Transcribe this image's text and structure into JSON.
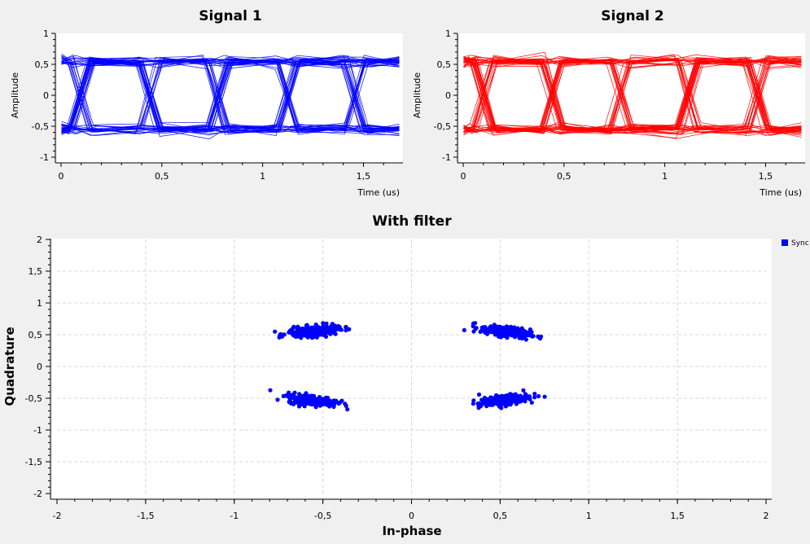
{
  "colors": {
    "signal1": "#0000ff",
    "signal2": "#ff0000",
    "scatter": "#0000ff"
  },
  "chart_data": [
    {
      "type": "line",
      "title": "Signal 1",
      "xlabel": "Time (us)",
      "ylabel": "Amplitude",
      "xlim": [
        0,
        1.68
      ],
      "ylim": [
        -1,
        1
      ],
      "xticks": [
        "0",
        "0,5",
        "1",
        "1,5"
      ],
      "yticks": [
        "1",
        "0,5",
        "0",
        "-0,5",
        "-1"
      ],
      "grid": false,
      "eye": {
        "symbol_period_us": 0.34,
        "first_crossing_us": 0.1,
        "levels": [
          0.55,
          -0.55
        ],
        "spread": 0.09,
        "traces": 60
      }
    },
    {
      "type": "line",
      "title": "Signal 2",
      "xlabel": "Time (us)",
      "ylabel": "Amplitude",
      "xlim": [
        0,
        1.68
      ],
      "ylim": [
        -1,
        1
      ],
      "xticks": [
        "0",
        "0,5",
        "1",
        "1,5"
      ],
      "yticks": [
        "1",
        "0,5",
        "0",
        "-0,5",
        "-1"
      ],
      "grid": false,
      "eye": {
        "symbol_period_us": 0.34,
        "first_crossing_us": 0.1,
        "levels": [
          0.55,
          -0.55
        ],
        "spread": 0.09,
        "traces": 60
      }
    },
    {
      "type": "scatter",
      "title": "With filter",
      "xlabel": "In-phase",
      "ylabel": "Quadrature",
      "xlim": [
        -2,
        2
      ],
      "ylim": [
        -2,
        2
      ],
      "xticks": [
        "-2",
        "-1,5",
        "-1",
        "-0,5",
        "0",
        "0,5",
        "1",
        "1,5",
        "2"
      ],
      "yticks": [
        "2",
        "1,5",
        "1",
        "0,5",
        "0",
        "-0,5",
        "-1",
        "-1,5",
        "-2"
      ],
      "grid": true,
      "legend": {
        "label": "Sync",
        "placement": "top-right"
      },
      "clusters": [
        {
          "x": -0.56,
          "y": 0.55,
          "spread_x": 0.07,
          "spread_y": 0.04,
          "tilt": 0.25
        },
        {
          "x": 0.53,
          "y": 0.55,
          "spread_x": 0.07,
          "spread_y": 0.04,
          "tilt": -0.35
        },
        {
          "x": -0.56,
          "y": -0.53,
          "spread_x": 0.07,
          "spread_y": 0.04,
          "tilt": -0.3
        },
        {
          "x": 0.52,
          "y": -0.53,
          "spread_x": 0.07,
          "spread_y": 0.04,
          "tilt": 0.4
        }
      ],
      "outliers": [
        {
          "x": -0.37,
          "y": 0.62
        }
      ]
    }
  ]
}
